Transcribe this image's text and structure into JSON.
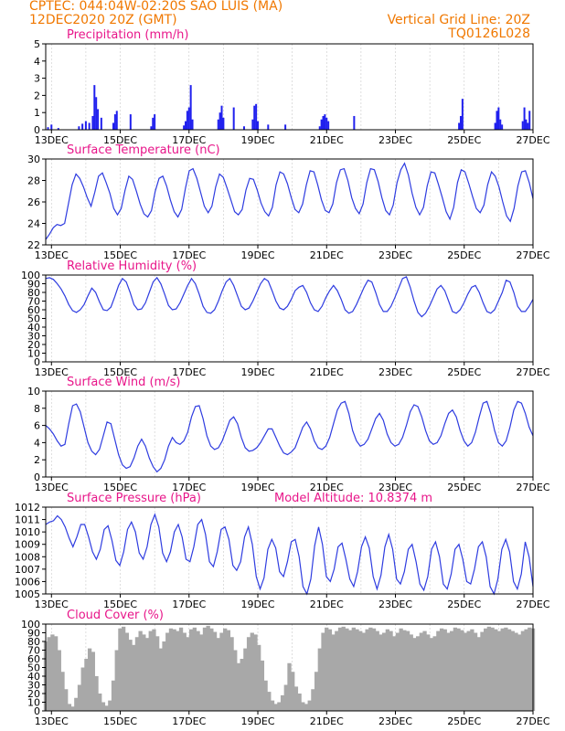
{
  "header": {
    "left_line1": "CPTEC:  044:04W-02:20S   SAO LUIS (MA)",
    "left_line2": "12DEC2020 20Z (GMT)",
    "right_line1": "Vertical Grid Line: 20Z",
    "right_line2": "TQ0126L028"
  },
  "colors": {
    "header": "#f07800",
    "panel_title": "#e8168a",
    "series_line": "#2e3ce0",
    "precip_bar": "#2020ee",
    "cloud_fill": "#a8a8a8"
  },
  "chart_data": [
    {
      "type": "bar",
      "title": "Precipitation (mm/h)",
      "ylim": [
        0,
        5
      ],
      "yticks": [
        "0",
        "1",
        "2",
        "3",
        "4",
        "5"
      ],
      "xticks": [
        "13DEC",
        "15DEC",
        "17DEC",
        "19DEC",
        "21DEC",
        "23DEC",
        "25DEC",
        "27DEC"
      ],
      "xlim_days": [
        12.833,
        27.0
      ],
      "events": [
        [
          12.9,
          0.15
        ],
        [
          13.0,
          0.3
        ],
        [
          13.2,
          0.1
        ],
        [
          13.8,
          0.2
        ],
        [
          13.9,
          0.35
        ],
        [
          14.0,
          0.5
        ],
        [
          14.1,
          0.4
        ],
        [
          14.2,
          0.8
        ],
        [
          14.25,
          2.6
        ],
        [
          14.3,
          1.9
        ],
        [
          14.35,
          1.2
        ],
        [
          14.45,
          0.7
        ],
        [
          14.8,
          0.4
        ],
        [
          14.85,
          0.9
        ],
        [
          14.9,
          1.1
        ],
        [
          15.3,
          0.9
        ],
        [
          15.9,
          0.2
        ],
        [
          15.95,
          0.7
        ],
        [
          16.0,
          0.9
        ],
        [
          16.85,
          0.25
        ],
        [
          16.9,
          0.5
        ],
        [
          16.95,
          1.1
        ],
        [
          17.0,
          1.3
        ],
        [
          17.05,
          2.6
        ],
        [
          17.1,
          0.6
        ],
        [
          17.85,
          0.6
        ],
        [
          17.9,
          1.0
        ],
        [
          17.95,
          1.4
        ],
        [
          18.0,
          0.7
        ],
        [
          18.3,
          1.3
        ],
        [
          18.6,
          0.2
        ],
        [
          18.85,
          0.6
        ],
        [
          18.9,
          1.4
        ],
        [
          18.95,
          1.5
        ],
        [
          19.0,
          0.5
        ],
        [
          19.3,
          0.3
        ],
        [
          19.8,
          0.3
        ],
        [
          20.8,
          0.2
        ],
        [
          20.85,
          0.6
        ],
        [
          20.9,
          0.8
        ],
        [
          20.95,
          0.9
        ],
        [
          21.0,
          0.7
        ],
        [
          21.05,
          0.5
        ],
        [
          21.8,
          0.8
        ],
        [
          24.85,
          0.4
        ],
        [
          24.9,
          0.8
        ],
        [
          24.95,
          1.8
        ],
        [
          25.9,
          0.4
        ],
        [
          25.95,
          1.1
        ],
        [
          26.0,
          1.3
        ],
        [
          26.05,
          0.6
        ],
        [
          26.1,
          0.3
        ],
        [
          26.7,
          0.5
        ],
        [
          26.75,
          1.3
        ],
        [
          26.8,
          0.6
        ],
        [
          26.85,
          0.4
        ],
        [
          26.9,
          1.1
        ]
      ]
    },
    {
      "type": "line",
      "title": "Surface Temperature (nC)",
      "ylim": [
        22,
        30
      ],
      "yticks": [
        "22",
        "24",
        "26",
        "28",
        "30"
      ],
      "xticks": [
        "13DEC",
        "15DEC",
        "17DEC",
        "19DEC",
        "21DEC",
        "23DEC",
        "25DEC",
        "27DEC"
      ],
      "xlim_days": [
        12.833,
        27.0
      ],
      "values": [
        22.5,
        23.0,
        23.6,
        23.9,
        23.8,
        24.0,
        25.8,
        27.6,
        28.6,
        28.2,
        27.4,
        26.4,
        25.6,
        26.9,
        28.4,
        28.7,
        27.8,
        26.8,
        25.4,
        24.8,
        25.4,
        27.1,
        28.4,
        28.1,
        27.0,
        25.8,
        24.9,
        24.6,
        25.2,
        27.0,
        28.2,
        28.4,
        27.5,
        26.2,
        25.1,
        24.6,
        25.3,
        27.3,
        28.9,
        29.1,
        28.2,
        26.9,
        25.6,
        25.0,
        25.6,
        27.4,
        28.6,
        28.3,
        27.3,
        26.2,
        25.1,
        24.8,
        25.3,
        27.1,
        28.2,
        28.1,
        27.1,
        25.9,
        25.1,
        24.7,
        25.5,
        27.6,
        28.8,
        28.6,
        27.7,
        26.4,
        25.3,
        25.0,
        25.8,
        27.6,
        28.9,
        28.8,
        27.6,
        26.2,
        25.2,
        25.0,
        25.8,
        27.8,
        29.0,
        29.1,
        28.0,
        26.4,
        25.4,
        24.9,
        25.8,
        27.8,
        29.1,
        29.0,
        27.9,
        26.4,
        25.2,
        24.8,
        25.7,
        27.8,
        29.0,
        29.6,
        28.5,
        26.8,
        25.5,
        24.8,
        25.5,
        27.5,
        28.8,
        28.7,
        27.6,
        26.4,
        25.1,
        24.4,
        25.5,
        27.8,
        29.0,
        28.8,
        27.7,
        26.5,
        25.4,
        25.0,
        25.7,
        27.6,
        28.8,
        28.4,
        27.4,
        26.0,
        24.7,
        24.2,
        25.4,
        27.5,
        28.8,
        28.9,
        27.8,
        26.3
      ]
    },
    {
      "type": "line",
      "title": "Relative Humidity (%)",
      "ylim": [
        0,
        100
      ],
      "yticks": [
        "0",
        "10",
        "20",
        "30",
        "40",
        "50",
        "60",
        "70",
        "80",
        "90",
        "100"
      ],
      "xticks": [
        "13DEC",
        "15DEC",
        "17DEC",
        "19DEC",
        "21DEC",
        "23DEC",
        "25DEC",
        "27DEC"
      ],
      "xlim_days": [
        12.833,
        27.0
      ],
      "values": [
        96,
        97,
        95,
        90,
        84,
        76,
        66,
        59,
        57,
        60,
        66,
        76,
        85,
        80,
        69,
        60,
        59,
        63,
        75,
        88,
        96,
        92,
        80,
        66,
        60,
        61,
        68,
        80,
        92,
        97,
        90,
        78,
        65,
        60,
        61,
        68,
        78,
        88,
        96,
        90,
        78,
        64,
        57,
        56,
        60,
        70,
        82,
        92,
        96,
        88,
        76,
        64,
        60,
        62,
        70,
        80,
        90,
        96,
        93,
        82,
        70,
        62,
        60,
        64,
        72,
        82,
        86,
        88,
        80,
        68,
        60,
        58,
        64,
        74,
        82,
        88,
        82,
        72,
        60,
        56,
        58,
        66,
        76,
        86,
        94,
        92,
        80,
        66,
        58,
        58,
        64,
        74,
        85,
        96,
        98,
        86,
        70,
        57,
        52,
        56,
        64,
        74,
        84,
        88,
        82,
        70,
        58,
        56,
        60,
        68,
        78,
        86,
        88,
        80,
        68,
        58,
        56,
        60,
        70,
        80,
        94,
        92,
        80,
        64,
        58,
        58,
        64,
        72
      ]
    },
    {
      "type": "line",
      "title": "Surface Wind (m/s)",
      "ylim": [
        0,
        10
      ],
      "yticks": [
        "0",
        "2",
        "4",
        "6",
        "8",
        "10"
      ],
      "xticks": [
        "13DEC",
        "15DEC",
        "17DEC",
        "19DEC",
        "21DEC",
        "23DEC",
        "25DEC",
        "27DEC"
      ],
      "xlim_days": [
        12.833,
        27.0
      ],
      "values": [
        6.0,
        5.6,
        5.0,
        4.2,
        3.6,
        3.8,
        6.2,
        8.3,
        8.5,
        7.6,
        5.8,
        4.0,
        3.0,
        2.6,
        3.2,
        4.8,
        6.4,
        6.2,
        4.4,
        2.6,
        1.4,
        1.0,
        1.2,
        2.2,
        3.6,
        4.4,
        3.6,
        2.2,
        1.2,
        0.6,
        1.0,
        2.0,
        3.6,
        4.6,
        4.0,
        3.8,
        4.2,
        5.2,
        7.0,
        8.2,
        8.3,
        6.8,
        4.8,
        3.6,
        3.2,
        3.4,
        4.2,
        5.4,
        6.6,
        7.0,
        6.2,
        4.6,
        3.4,
        3.0,
        3.1,
        3.4,
        4.0,
        4.8,
        5.6,
        5.6,
        4.6,
        3.6,
        2.8,
        2.6,
        2.9,
        3.4,
        4.6,
        5.8,
        6.4,
        5.6,
        4.2,
        3.4,
        3.2,
        3.6,
        4.6,
        6.2,
        7.8,
        8.6,
        8.8,
        7.4,
        5.4,
        4.2,
        3.6,
        3.8,
        4.4,
        5.6,
        6.8,
        7.4,
        6.6,
        5.0,
        4.0,
        3.6,
        3.8,
        4.6,
        6.0,
        7.6,
        8.4,
        8.2,
        7.0,
        5.4,
        4.2,
        3.8,
        4.0,
        4.8,
        6.2,
        7.4,
        7.8,
        7.0,
        5.4,
        4.2,
        3.6,
        4.0,
        5.2,
        7.0,
        8.6,
        8.8,
        7.4,
        5.4,
        4.0,
        3.6,
        4.2,
        5.8,
        7.8,
        8.8,
        8.6,
        7.4,
        5.8,
        4.8
      ]
    },
    {
      "type": "line",
      "title": "Surface Pressure (hPa)",
      "annotation": "Model Altitude: 10.8374 m",
      "ylim": [
        1005,
        1012
      ],
      "yticks": [
        "1005",
        "1006",
        "1007",
        "1008",
        "1009",
        "1010",
        "1011",
        "1012"
      ],
      "xticks": [
        "13DEC",
        "15DEC",
        "17DEC",
        "19DEC",
        "21DEC",
        "23DEC",
        "25DEC",
        "27DEC"
      ],
      "xlim_days": [
        12.833,
        27.0
      ],
      "values": [
        1010.6,
        1010.8,
        1010.9,
        1011.3,
        1011.0,
        1010.4,
        1009.5,
        1008.8,
        1009.6,
        1010.6,
        1010.6,
        1009.6,
        1008.4,
        1007.8,
        1008.6,
        1010.2,
        1010.5,
        1009.3,
        1007.7,
        1007.3,
        1008.4,
        1010.2,
        1010.8,
        1010.0,
        1008.3,
        1007.8,
        1008.8,
        1010.6,
        1011.4,
        1010.4,
        1008.3,
        1007.6,
        1008.4,
        1010.0,
        1010.6,
        1009.6,
        1007.8,
        1007.6,
        1008.8,
        1010.6,
        1011.0,
        1009.8,
        1007.6,
        1007.2,
        1008.4,
        1010.2,
        1010.4,
        1009.4,
        1007.3,
        1006.9,
        1007.6,
        1009.6,
        1010.4,
        1009.0,
        1006.4,
        1005.4,
        1006.3,
        1008.6,
        1009.4,
        1008.7,
        1006.8,
        1006.4,
        1007.6,
        1009.2,
        1009.4,
        1008.0,
        1005.6,
        1005.0,
        1006.2,
        1008.9,
        1010.4,
        1009.0,
        1006.4,
        1006.0,
        1007.0,
        1008.8,
        1009.1,
        1007.8,
        1006.2,
        1005.6,
        1006.8,
        1008.8,
        1009.6,
        1008.7,
        1006.4,
        1005.4,
        1006.5,
        1008.8,
        1009.8,
        1008.6,
        1006.2,
        1005.8,
        1006.8,
        1008.6,
        1009.0,
        1007.6,
        1005.8,
        1005.3,
        1006.4,
        1008.6,
        1009.2,
        1008.0,
        1005.8,
        1005.4,
        1006.6,
        1008.6,
        1009.0,
        1007.8,
        1006.0,
        1005.8,
        1007.0,
        1008.8,
        1009.2,
        1008.0,
        1005.6,
        1005.0,
        1006.2,
        1008.6,
        1009.4,
        1008.4,
        1006.0,
        1005.4,
        1006.6,
        1009.2,
        1008.0,
        1005.6
      ]
    },
    {
      "type": "area",
      "title": "Cloud Cover (%)",
      "ylim": [
        0,
        100
      ],
      "yticks": [
        "0",
        "10",
        "20",
        "30",
        "40",
        "50",
        "60",
        "70",
        "80",
        "90",
        "100"
      ],
      "xticks": [
        "13DEC",
        "15DEC",
        "17DEC",
        "19DEC",
        "21DEC",
        "23DEC",
        "25DEC",
        "27DEC"
      ],
      "xlim_days": [
        12.833,
        27.0
      ],
      "values": [
        80,
        85,
        88,
        86,
        70,
        45,
        25,
        8,
        5,
        15,
        30,
        50,
        60,
        72,
        68,
        40,
        20,
        10,
        6,
        12,
        35,
        70,
        95,
        97,
        90,
        82,
        76,
        85,
        92,
        88,
        84,
        92,
        94,
        86,
        72,
        80,
        90,
        95,
        94,
        92,
        96,
        90,
        85,
        94,
        96,
        92,
        88,
        96,
        98,
        95,
        91,
        84,
        90,
        95,
        93,
        85,
        70,
        55,
        60,
        72,
        85,
        90,
        88,
        76,
        58,
        35,
        22,
        12,
        8,
        10,
        18,
        30,
        55,
        45,
        28,
        20,
        10,
        8,
        12,
        25,
        45,
        72,
        90,
        96,
        94,
        88,
        92,
        96,
        97,
        95,
        93,
        96,
        94,
        92,
        90,
        94,
        96,
        95,
        92,
        88,
        90,
        94,
        92,
        86,
        90,
        95,
        93,
        92,
        88,
        84,
        86,
        90,
        92,
        88,
        84,
        86,
        92,
        95,
        94,
        90,
        92,
        96,
        95,
        93,
        90,
        92,
        94,
        90,
        85,
        91,
        95,
        97,
        96,
        94,
        92,
        95,
        96,
        94,
        92,
        90,
        88,
        92,
        94,
        96,
        95
      ]
    }
  ]
}
